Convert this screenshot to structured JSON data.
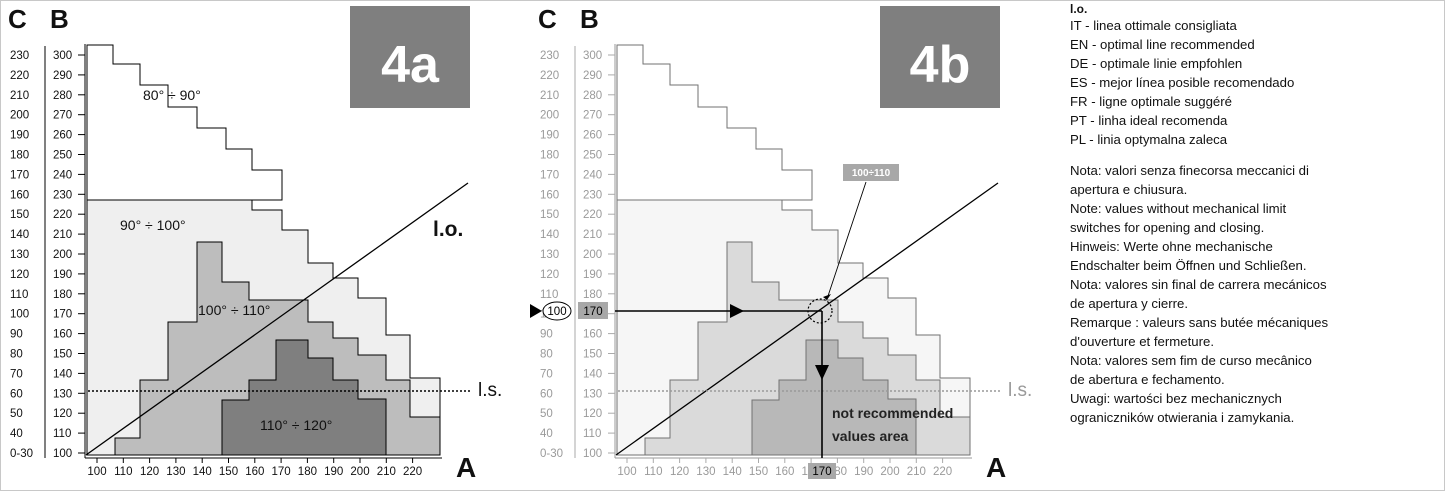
{
  "panels": [
    {
      "id": "4a",
      "badge": "4a",
      "faded": false,
      "axis_c_label": "C",
      "axis_b_label": "B",
      "axis_a_label": "A",
      "c_ticks": [
        "230",
        "220",
        "210",
        "200",
        "190",
        "180",
        "170",
        "160",
        "150",
        "140",
        "130",
        "120",
        "110",
        "100",
        "90",
        "80",
        "70",
        "60",
        "50",
        "40",
        "0-30"
      ],
      "b_ticks": [
        "300",
        "290",
        "280",
        "270",
        "260",
        "250",
        "240",
        "230",
        "220",
        "210",
        "200",
        "190",
        "180",
        "170",
        "160",
        "150",
        "140",
        "130",
        "120",
        "110",
        "100"
      ],
      "a_ticks": [
        "100",
        "110",
        "120",
        "130",
        "140",
        "150",
        "160",
        "170",
        "180",
        "190",
        "200",
        "210",
        "220"
      ],
      "zone_labels": [
        "80° ÷ 90°",
        "90° ÷ 100°",
        "100° ÷ 110°",
        "110° ÷ 120°"
      ],
      "optimal_line_label": "l.o.",
      "limit_line_label": "l.s."
    },
    {
      "id": "4b",
      "badge": "4b",
      "faded": true,
      "axis_c_label": "C",
      "axis_b_label": "B",
      "axis_a_label": "A",
      "c_ticks": [
        "230",
        "220",
        "210",
        "200",
        "190",
        "180",
        "170",
        "160",
        "150",
        "140",
        "130",
        "120",
        "110",
        "100",
        "90",
        "80",
        "70",
        "60",
        "50",
        "40",
        "0-30"
      ],
      "b_ticks": [
        "300",
        "290",
        "280",
        "270",
        "260",
        "250",
        "240",
        "230",
        "220",
        "210",
        "200",
        "190",
        "180",
        "170",
        "160",
        "150",
        "140",
        "130",
        "120",
        "110",
        "100"
      ],
      "a_ticks": [
        "100",
        "110",
        "120",
        "130",
        "140",
        "150",
        "160",
        "170",
        "180",
        "190",
        "200",
        "210",
        "220"
      ],
      "limit_line_label": "l.s.",
      "example": {
        "c_value": "100",
        "b_value": "170",
        "a_value": "170",
        "callout": "100÷110",
        "note_line1": "not recommended",
        "note_line2": "values area"
      }
    }
  ],
  "legend": {
    "title": "l.o.",
    "lines": [
      "IT - linea ottimale consigliata",
      "EN - optimal line recommended",
      "DE - optimale linie empfohlen",
      "ES - mejor línea posible recomendado",
      "FR - ligne optimale suggéré",
      "PT - linha ideal recomenda",
      "PL - linia optymalna zaleca"
    ],
    "notes": [
      "Nota: valori senza finecorsa meccanici di",
      "apertura e chiusura.",
      "Note: values without mechanical limit",
      "switches for opening and closing.",
      "Hinweis: Werte ohne mechanische",
      "Endschalter beim Öffnen und Schließen.",
      "Nota: valores sin final de carrera mecánicos",
      "de apertura y cierre.",
      "Remarque : valeurs sans butée mécaniques",
      "d'ouverture et fermeture.",
      "Nota: valores sem fim de curso mecânico",
      "de abertura e fechamento.",
      "Uwagi: wartości bez mechanicznych",
      "ograniczników otwierania i zamykania."
    ]
  },
  "colors": {
    "zone_white": "#ffffff",
    "zone_light": "#efefef",
    "zone_mid": "#bdbdbd",
    "zone_dark": "#7f7f7f",
    "badge_bg": "#7f7f7f",
    "badge_text": "#ffffff"
  }
}
